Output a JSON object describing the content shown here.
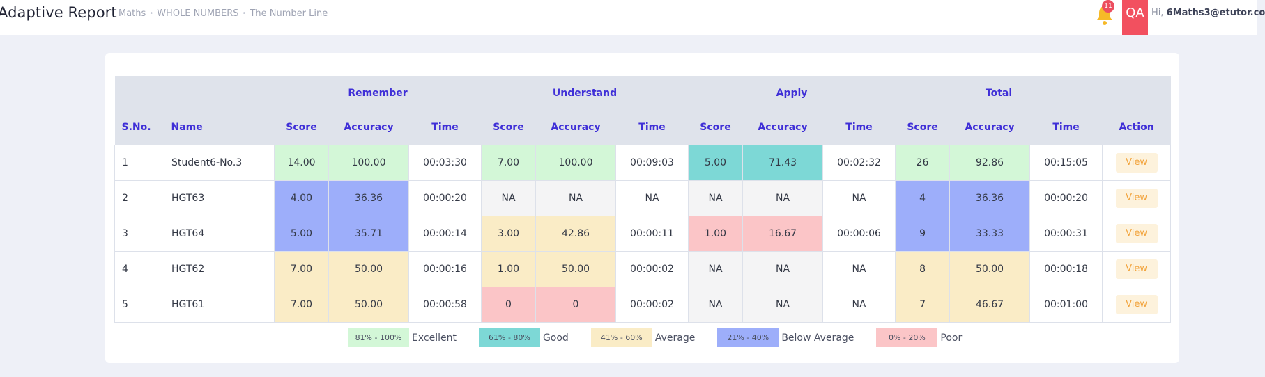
{
  "header": {
    "title": "Adaptive Report",
    "breadcrumb": [
      "Maths",
      "WHOLE NUMBERS",
      "The Number Line"
    ],
    "notification_count": "11",
    "avatar_initials": "QA",
    "greeting_prefix": "Hi,",
    "user_email": "6Maths3@etutor.co"
  },
  "table": {
    "groups": [
      "Remember",
      "Understand",
      "Apply",
      "Total"
    ],
    "columns": [
      "S.No.",
      "Name",
      "Score",
      "Accuracy",
      "Time",
      "Score",
      "Accuracy",
      "Time",
      "Score",
      "Accuracy",
      "Time",
      "Score",
      "Accuracy",
      "Time",
      "Action"
    ],
    "rows": [
      {
        "sno": "1",
        "name": "Student6-No.3",
        "r_score": "14.00",
        "r_acc": "100.00",
        "r_time": "00:03:30",
        "u_score": "7.00",
        "u_acc": "100.00",
        "u_time": "00:09:03",
        "a_score": "5.00",
        "a_acc": "71.43",
        "a_time": "00:02:32",
        "t_score": "26",
        "t_acc": "92.86",
        "t_time": "00:15:05",
        "action": "View"
      },
      {
        "sno": "2",
        "name": "HGT63",
        "r_score": "4.00",
        "r_acc": "36.36",
        "r_time": "00:00:20",
        "u_score": "NA",
        "u_acc": "NA",
        "u_time": "NA",
        "a_score": "NA",
        "a_acc": "NA",
        "a_time": "NA",
        "t_score": "4",
        "t_acc": "36.36",
        "t_time": "00:00:20",
        "action": "View"
      },
      {
        "sno": "3",
        "name": "HGT64",
        "r_score": "5.00",
        "r_acc": "35.71",
        "r_time": "00:00:14",
        "u_score": "3.00",
        "u_acc": "42.86",
        "u_time": "00:00:11",
        "a_score": "1.00",
        "a_acc": "16.67",
        "a_time": "00:00:06",
        "t_score": "9",
        "t_acc": "33.33",
        "t_time": "00:00:31",
        "action": "View"
      },
      {
        "sno": "4",
        "name": "HGT62",
        "r_score": "7.00",
        "r_acc": "50.00",
        "r_time": "00:00:16",
        "u_score": "1.00",
        "u_acc": "50.00",
        "u_time": "00:00:02",
        "a_score": "NA",
        "a_acc": "NA",
        "a_time": "NA",
        "t_score": "8",
        "t_acc": "50.00",
        "t_time": "00:00:18",
        "action": "View"
      },
      {
        "sno": "5",
        "name": "HGT61",
        "r_score": "7.00",
        "r_acc": "50.00",
        "r_time": "00:00:58",
        "u_score": "0",
        "u_acc": "0",
        "u_time": "00:00:02",
        "a_score": "NA",
        "a_acc": "NA",
        "a_time": "NA",
        "t_score": "7",
        "t_acc": "46.67",
        "t_time": "00:01:00",
        "action": "View"
      }
    ]
  },
  "legend": [
    {
      "range": "81% - 100%",
      "label": "Excellent",
      "color": "#d3f7d7"
    },
    {
      "range": "61% - 80%",
      "label": "Good",
      "color": "#7dd8d6"
    },
    {
      "range": "41% - 60%",
      "label": "Average",
      "color": "#faecc6"
    },
    {
      "range": "21% - 40%",
      "label": "Below Average",
      "color": "#9daefa"
    },
    {
      "range": "0% - 20%",
      "label": "Poor",
      "color": "#fbc5c7"
    }
  ],
  "colors": {
    "header_text": "#3f2fd7",
    "accent": "#f2505f",
    "view_button_text": "#f2a43d"
  }
}
